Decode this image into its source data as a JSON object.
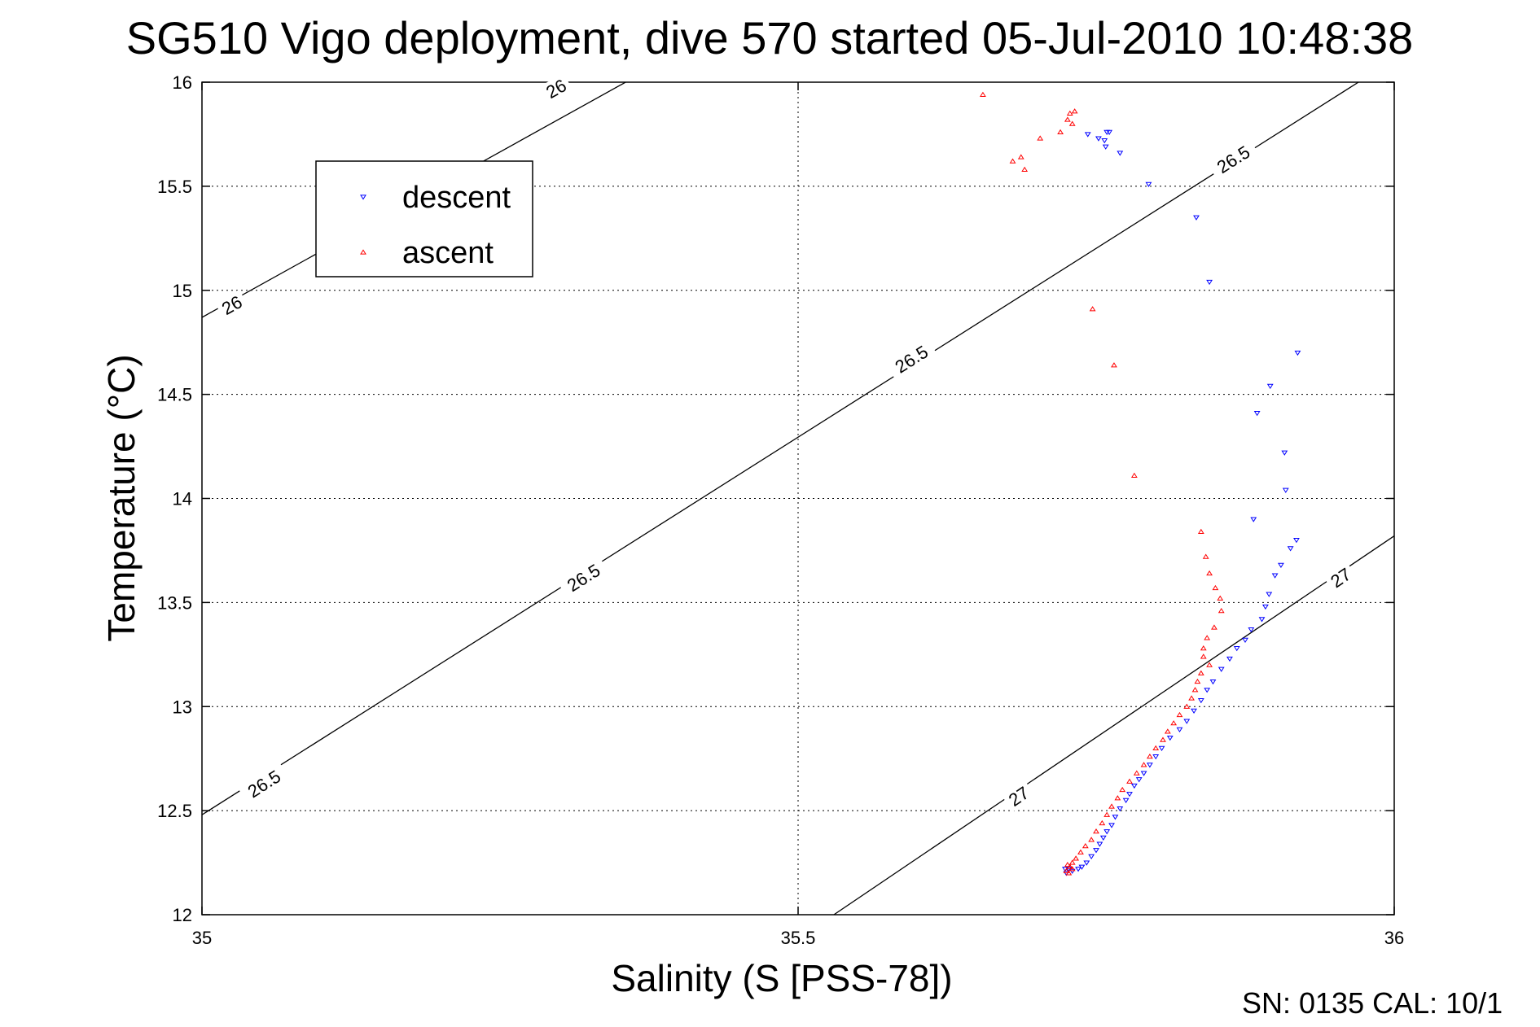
{
  "chart_data": {
    "type": "scatter",
    "title": "SG510 Vigo deployment, dive 570 started 05-Jul-2010 10:48:38",
    "xlabel": "Salinity (S [PSS-78])",
    "ylabel": "Temperature (°C)",
    "xlim": [
      35,
      36
    ],
    "ylim": [
      12,
      16
    ],
    "xticks": [
      "35",
      "35.5",
      "36"
    ],
    "yticks": [
      "12",
      "12.5",
      "13",
      "13.5",
      "14",
      "14.5",
      "15",
      "15.5",
      "16"
    ],
    "grid": true,
    "legend": {
      "position": "top-left",
      "entries": [
        "descent",
        "ascent"
      ]
    },
    "footer": "SN: 0135  CAL: 10/1",
    "contours": [
      {
        "level": "26",
        "points": [
          [
            35,
            14.87
          ],
          [
            35.5,
            16.46
          ]
        ]
      },
      {
        "level": "26.5",
        "points": [
          [
            35,
            12.48
          ],
          [
            35.97,
            16.0
          ]
        ]
      },
      {
        "level": "27",
        "points": [
          [
            35.53,
            12.0
          ],
          [
            36,
            13.82
          ]
        ]
      }
    ],
    "contour_labels": [
      {
        "text": "26",
        "x": 35.297,
        "y": 15.97
      },
      {
        "text": "26",
        "x": 35.025,
        "y": 14.93
      },
      {
        "text": "26.5",
        "x": 35.865,
        "y": 15.63
      },
      {
        "text": "26.5",
        "x": 35.595,
        "y": 14.67
      },
      {
        "text": "26.5",
        "x": 35.32,
        "y": 13.62
      },
      {
        "text": "26.5",
        "x": 35.052,
        "y": 12.63
      },
      {
        "text": "27",
        "x": 35.955,
        "y": 13.62
      },
      {
        "text": "27",
        "x": 35.685,
        "y": 12.57
      }
    ],
    "series": [
      {
        "name": "descent",
        "color": "#0000ff",
        "marker": "triangle-down",
        "x": [
          35.743,
          35.752,
          35.757,
          35.758,
          35.759,
          35.761,
          35.77,
          35.794,
          35.834,
          35.845,
          35.919,
          35.896,
          35.885,
          35.908,
          35.909,
          35.882,
          35.918,
          35.913,
          35.905,
          35.9,
          35.895,
          35.892,
          35.889,
          35.88,
          35.875,
          35.868,
          35.862,
          35.855,
          35.848,
          35.843,
          35.838,
          35.832,
          35.826,
          35.82,
          35.812,
          35.805,
          35.8,
          35.795,
          35.79,
          35.786,
          35.782,
          35.778,
          35.775,
          35.77,
          35.766,
          35.763,
          35.759,
          35.756,
          35.753,
          35.75,
          35.746,
          35.742,
          35.738,
          35.735,
          35.73,
          35.727,
          35.725,
          35.724
        ],
        "y": [
          15.75,
          15.73,
          15.72,
          15.69,
          15.76,
          15.76,
          15.66,
          15.51,
          15.35,
          15.04,
          14.7,
          14.54,
          14.41,
          14.22,
          14.04,
          13.9,
          13.8,
          13.76,
          13.68,
          13.63,
          13.54,
          13.48,
          13.42,
          13.37,
          13.32,
          13.28,
          13.23,
          13.18,
          13.12,
          13.08,
          13.03,
          12.98,
          12.93,
          12.89,
          12.85,
          12.8,
          12.76,
          12.72,
          12.68,
          12.65,
          12.62,
          12.58,
          12.55,
          12.51,
          12.47,
          12.43,
          12.4,
          12.37,
          12.34,
          12.31,
          12.28,
          12.25,
          12.23,
          12.22,
          12.21,
          12.22,
          12.2,
          12.22
        ]
      },
      {
        "name": "ascent",
        "color": "#ff0000",
        "marker": "triangle-up",
        "x": [
          35.655,
          35.728,
          35.732,
          35.726,
          35.73,
          35.72,
          35.703,
          35.687,
          35.69,
          35.68,
          35.747,
          35.765,
          35.782,
          35.838,
          35.842,
          35.845,
          35.85,
          35.854,
          35.855,
          35.849,
          35.843,
          35.84,
          35.84,
          35.845,
          35.838,
          35.835,
          35.833,
          35.83,
          35.826,
          35.82,
          35.815,
          35.81,
          35.806,
          35.8,
          35.795,
          35.79,
          35.784,
          35.778,
          35.772,
          35.768,
          35.763,
          35.759,
          35.755,
          35.75,
          35.746,
          35.741,
          35.737,
          35.733,
          35.73,
          35.728,
          35.725,
          35.727,
          35.73,
          35.726
        ],
        "y": [
          15.94,
          15.85,
          15.86,
          15.82,
          15.8,
          15.76,
          15.73,
          15.64,
          15.58,
          15.62,
          14.91,
          14.64,
          14.11,
          13.84,
          13.72,
          13.64,
          13.57,
          13.52,
          13.46,
          13.38,
          13.33,
          13.28,
          13.24,
          13.2,
          13.16,
          13.12,
          13.08,
          13.04,
          13.0,
          12.96,
          12.92,
          12.88,
          12.84,
          12.8,
          12.76,
          12.72,
          12.68,
          12.64,
          12.6,
          12.56,
          12.52,
          12.48,
          12.44,
          12.4,
          12.36,
          12.33,
          12.3,
          12.27,
          12.25,
          12.23,
          12.21,
          12.2,
          12.22,
          12.24
        ]
      }
    ]
  }
}
